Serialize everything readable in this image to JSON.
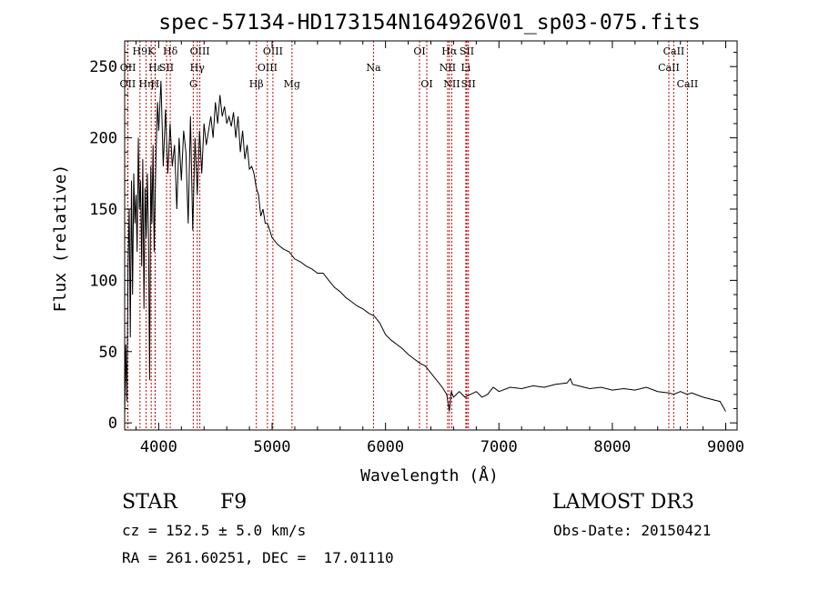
{
  "chart_data": {
    "type": "line",
    "title": "spec-57134-HD173154N164926V01_sp03-075.fits",
    "xlabel": "Wavelength (Å)",
    "ylabel": "Flux (relative)",
    "xlim": [
      3700,
      9100
    ],
    "ylim": [
      -5,
      268
    ],
    "xticks": [
      4000,
      5000,
      6000,
      7000,
      8000,
      9000
    ],
    "yticks": [
      0,
      50,
      100,
      150,
      200,
      250
    ],
    "grid": false,
    "line_color": "#000000",
    "marker_color": "#cc0000",
    "series": [
      {
        "x": [
          3700,
          3710,
          3720,
          3730,
          3740,
          3750,
          3760,
          3770,
          3780,
          3790,
          3800,
          3810,
          3820,
          3830,
          3840,
          3850,
          3860,
          3870,
          3880,
          3890,
          3900,
          3910,
          3920,
          3930,
          3940,
          3950,
          3960,
          3970,
          3980,
          3990,
          4000,
          4020,
          4040,
          4060,
          4080,
          4100,
          4120,
          4140,
          4160,
          4180,
          4200,
          4220,
          4240,
          4260,
          4280,
          4300,
          4320,
          4340,
          4360,
          4380,
          4400,
          4420,
          4440,
          4460,
          4480,
          4500,
          4520,
          4540,
          4560,
          4580,
          4600,
          4620,
          4640,
          4660,
          4680,
          4700,
          4720,
          4740,
          4760,
          4780,
          4800,
          4820,
          4840,
          4860,
          4880,
          4900,
          4920,
          4940,
          4960,
          4980,
          5000,
          5050,
          5100,
          5150,
          5200,
          5250,
          5300,
          5350,
          5400,
          5450,
          5500,
          5550,
          5600,
          5650,
          5700,
          5750,
          5800,
          5850,
          5900,
          5950,
          6000,
          6050,
          6100,
          6150,
          6200,
          6250,
          6300,
          6350,
          6400,
          6450,
          6500,
          6540,
          6563,
          6580,
          6600,
          6650,
          6700,
          6750,
          6800,
          6850,
          6900,
          6950,
          7000,
          7100,
          7200,
          7300,
          7400,
          7500,
          7600,
          7630,
          7650,
          7700,
          7800,
          7900,
          8000,
          8100,
          8200,
          8300,
          8400,
          8500,
          8540,
          8600,
          8660,
          8700,
          8800,
          8900,
          8950,
          9000
        ],
        "y": [
          5,
          55,
          15,
          110,
          150,
          60,
          170,
          90,
          175,
          140,
          160,
          120,
          200,
          150,
          170,
          110,
          185,
          80,
          165,
          130,
          175,
          130,
          30,
          180,
          140,
          195,
          120,
          165,
          200,
          225,
          205,
          240,
          180,
          220,
          175,
          210,
          180,
          195,
          150,
          200,
          170,
          205,
          190,
          140,
          215,
          135,
          200,
          160,
          205,
          175,
          210,
          195,
          205,
          215,
          200,
          225,
          210,
          230,
          215,
          222,
          210,
          215,
          208,
          218,
          200,
          215,
          190,
          205,
          185,
          195,
          178,
          180,
          175,
          165,
          160,
          145,
          150,
          140,
          140,
          135,
          130,
          125,
          122,
          120,
          115,
          113,
          110,
          108,
          105,
          105,
          100,
          95,
          92,
          88,
          85,
          82,
          80,
          77,
          75,
          70,
          62,
          58,
          55,
          52,
          48,
          45,
          42,
          40,
          35,
          30,
          25,
          20,
          8,
          22,
          18,
          22,
          18,
          20,
          22,
          18,
          20,
          25,
          22,
          25,
          24,
          26,
          25,
          27,
          28,
          31,
          27,
          26,
          24,
          25,
          23,
          24,
          23,
          25,
          22,
          21,
          20,
          22,
          20,
          21,
          18,
          16,
          15,
          8
        ]
      }
    ],
    "lines": [
      {
        "name": "OII",
        "wl": 3727,
        "row": 2
      },
      {
        "name": "H9",
        "wl": 3835,
        "row": 0
      },
      {
        "name": "OII",
        "wl": 3729,
        "row": 1
      },
      {
        "name": "Hε",
        "wl": 3970,
        "row": 1
      },
      {
        "name": "Hη",
        "wl": 3889,
        "row": 2
      },
      {
        "name": "K",
        "wl": 3934,
        "row": 0
      },
      {
        "name": "H",
        "wl": 3968,
        "row": 2
      },
      {
        "name": "SII",
        "wl": 4069,
        "row": 1
      },
      {
        "name": "Hδ",
        "wl": 4102,
        "row": 0
      },
      {
        "name": "OIII",
        "wl": 4363,
        "row": 0
      },
      {
        "name": "Hγ",
        "wl": 4340,
        "row": 1
      },
      {
        "name": "G",
        "wl": 4305,
        "row": 2
      },
      {
        "name": "Hβ",
        "wl": 4861,
        "row": 2
      },
      {
        "name": "OIII",
        "wl": 5007,
        "row": 0
      },
      {
        "name": "OIII",
        "wl": 4959,
        "row": 1
      },
      {
        "name": "Mg",
        "wl": 5175,
        "row": 2
      },
      {
        "name": "Na",
        "wl": 5894,
        "row": 1
      },
      {
        "name": "OI",
        "wl": 6300,
        "row": 0
      },
      {
        "name": "OI",
        "wl": 6364,
        "row": 2
      },
      {
        "name": "Hα",
        "wl": 6563,
        "row": 0
      },
      {
        "name": "NII",
        "wl": 6548,
        "row": 1
      },
      {
        "name": "NII",
        "wl": 6584,
        "row": 2
      },
      {
        "name": "SII",
        "wl": 6717,
        "row": 0
      },
      {
        "name": "Li",
        "wl": 6708,
        "row": 1
      },
      {
        "name": "SII",
        "wl": 6731,
        "row": 2
      },
      {
        "name": "CaII",
        "wl": 8542,
        "row": 0
      },
      {
        "name": "CaII",
        "wl": 8498,
        "row": 1
      },
      {
        "name": "CaII",
        "wl": 8662,
        "row": 2
      }
    ]
  },
  "info": {
    "object_class": "STAR",
    "subclass": "F9",
    "survey": "LAMOST DR3",
    "cz": "cz = 152.5 ± 5.0 km/s",
    "obs_date": "Obs-Date: 20150421",
    "coords": "RA = 261.60251, DEC =  17.01110"
  }
}
